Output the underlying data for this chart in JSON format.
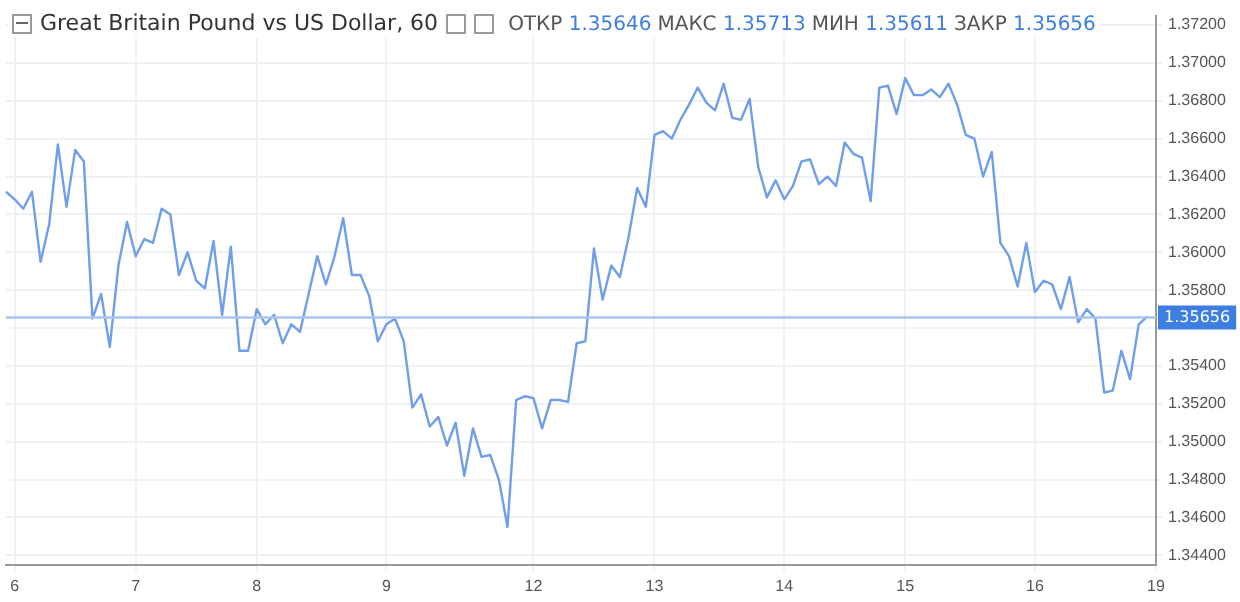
{
  "chart_data": {
    "type": "line",
    "title": "Great Britain Pound vs US Dollar, 60",
    "annotations": [
      "ОТКР 1.35646",
      "МАКС 1.35713",
      "МИН 1.35611",
      "ЗАКР 1.35656"
    ],
    "categories": [
      null,
      "6",
      null,
      null,
      null,
      null,
      null,
      null,
      null,
      null,
      null,
      null,
      null,
      null,
      null,
      "7",
      null,
      null,
      null,
      null,
      null,
      null,
      null,
      null,
      null,
      null,
      null,
      null,
      null,
      "8",
      null,
      null,
      null,
      null,
      null,
      null,
      null,
      null,
      null,
      null,
      null,
      null,
      null,
      null,
      "9",
      null,
      null,
      null,
      null,
      null,
      null,
      null,
      null,
      null,
      null,
      null,
      null,
      null,
      null,
      null,
      null,
      "12",
      null,
      null,
      null,
      null,
      null,
      null,
      null,
      null,
      null,
      null,
      null,
      null,
      null,
      "13",
      null,
      null,
      null,
      null,
      null,
      null,
      null,
      null,
      null,
      null,
      null,
      null,
      null,
      null,
      "14",
      null,
      null,
      null,
      null,
      null,
      null,
      null,
      null,
      null,
      null,
      null,
      null,
      null,
      "15",
      null,
      null,
      null,
      null,
      null,
      null,
      null,
      null,
      null,
      null,
      null,
      null,
      null,
      null,
      "16",
      null,
      null,
      null,
      null,
      null,
      null,
      null,
      null,
      null,
      null,
      null,
      null,
      null,
      "19"
    ],
    "series": [
      {
        "color": "#6f9fe8",
        "values": [
          1.3632,
          1.3628,
          1.3623,
          1.3632,
          1.3595,
          1.3615,
          1.3657,
          1.3624,
          1.3654,
          1.3648,
          1.3565,
          1.3578,
          1.355,
          1.3593,
          1.3616,
          1.3598,
          1.3607,
          1.3605,
          1.3623,
          1.362,
          1.3588,
          1.36,
          1.3585,
          1.3581,
          1.3606,
          1.3567,
          1.3603,
          1.3548,
          1.3548,
          1.357,
          1.3562,
          1.3567,
          1.3552,
          1.3562,
          1.3558,
          1.3578,
          1.3598,
          1.3583,
          1.3598,
          1.3618,
          1.3588,
          1.3588,
          1.3577,
          1.3553,
          1.3562,
          1.3565,
          1.3553,
          1.3518,
          1.3525,
          1.3508,
          1.3513,
          1.3498,
          1.351,
          1.3482,
          1.3507,
          1.3492,
          1.3493,
          1.348,
          1.3455,
          1.3522,
          1.3524,
          1.3523,
          1.3507,
          1.3522,
          1.3522,
          1.3521,
          1.3552,
          1.3553,
          1.3602,
          1.3575,
          1.3593,
          1.3587,
          1.3608,
          1.3634,
          1.3624,
          1.3662,
          1.3664,
          1.366,
          1.367,
          1.3678,
          1.3687,
          1.3679,
          1.3675,
          1.3689,
          1.3671,
          1.367,
          1.3681,
          1.3645,
          1.3629,
          1.3638,
          1.3628,
          1.3635,
          1.3648,
          1.3649,
          1.3636,
          1.364,
          1.3635,
          1.3658,
          1.3652,
          1.365,
          1.3627,
          1.3687,
          1.3688,
          1.3673,
          1.3692,
          1.3683,
          1.3683,
          1.3686,
          1.3682,
          1.3689,
          1.3678,
          1.3662,
          1.366,
          1.364,
          1.3653,
          1.3605,
          1.3598,
          1.3582,
          1.3605,
          1.3579,
          1.3585,
          1.3583,
          1.357,
          1.3587,
          1.3563,
          1.357,
          1.3565,
          1.3526,
          1.3527,
          1.3548,
          1.3533,
          1.3562,
          1.3566,
          null
        ]
      }
    ],
    "ylim": [
      1.3435,
      1.3725
    ],
    "yticks": [
      {
        "value": 1.344,
        "label": "1.34400"
      },
      {
        "value": 1.346,
        "label": "1.34600"
      },
      {
        "value": 1.348,
        "label": "1.34800"
      },
      {
        "value": 1.35,
        "label": "1.35000"
      },
      {
        "value": 1.352,
        "label": "1.35200"
      },
      {
        "value": 1.354,
        "label": "1.35400"
      },
      {
        "value": 1.356,
        "label": null
      },
      {
        "value": 1.358,
        "label": "1.35800"
      },
      {
        "value": 1.36,
        "label": "1.36000"
      },
      {
        "value": 1.362,
        "label": "1.36200"
      },
      {
        "value": 1.364,
        "label": "1.36400"
      },
      {
        "value": 1.366,
        "label": "1.36600"
      },
      {
        "value": 1.368,
        "label": "1.36800"
      },
      {
        "value": 1.37,
        "label": "1.37000"
      },
      {
        "value": 1.372,
        "label": "1.37200"
      }
    ],
    "ref_lines": [
      {
        "axis": "y",
        "value": 1.35656,
        "label": "1.35656",
        "color": "#a9c4ee"
      }
    ],
    "grid": true,
    "legend": false,
    "marker": "none",
    "line_style": "solid"
  }
}
